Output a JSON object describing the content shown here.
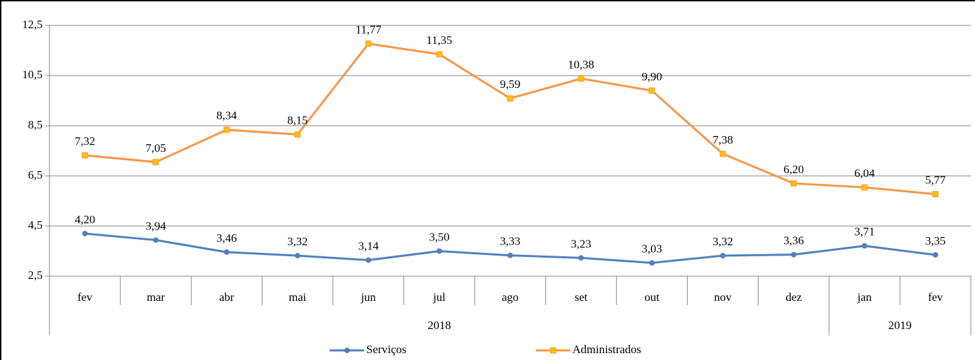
{
  "chart_data": {
    "type": "line",
    "groups": [
      {
        "name": "2018",
        "categories": [
          "fev",
          "mar",
          "abr",
          "mai",
          "jun",
          "jul",
          "ago",
          "set",
          "out",
          "nov",
          "dez"
        ]
      },
      {
        "name": "2019",
        "categories": [
          "jan",
          "fev"
        ]
      }
    ],
    "series": [
      {
        "name": "Serviços",
        "color": "#4f81bd",
        "marker": "circle",
        "values": [
          4.2,
          3.94,
          3.46,
          3.32,
          3.14,
          3.5,
          3.33,
          3.23,
          3.03,
          3.32,
          3.36,
          3.71,
          3.35
        ],
        "value_labels": [
          "4,20",
          "3,94",
          "3,46",
          "3,32",
          "3,14",
          "3,50",
          "3,33",
          "3,23",
          "3,03",
          "3,32",
          "3,36",
          "3,71",
          "3,35"
        ]
      },
      {
        "name": "Administrados",
        "color": "#f79646",
        "marker": "square",
        "values": [
          7.32,
          7.05,
          8.34,
          8.15,
          11.77,
          11.35,
          9.59,
          10.38,
          9.9,
          7.38,
          6.2,
          6.04,
          5.77
        ],
        "value_labels": [
          "7,32",
          "7,05",
          "8,34",
          "8,15",
          "11,77",
          "11,35",
          "9,59",
          "10,38",
          "9,90",
          "7,38",
          "6,20",
          "6,04",
          "5,77"
        ]
      }
    ],
    "ylim": [
      2.5,
      12.5
    ],
    "yticks": [
      {
        "value": 2.5,
        "label": "2,5"
      },
      {
        "value": 4.5,
        "label": "4,5"
      },
      {
        "value": 6.5,
        "label": "6,5"
      },
      {
        "value": 8.5,
        "label": "8,5"
      },
      {
        "value": 10.5,
        "label": "10,5"
      },
      {
        "value": 12.5,
        "label": "12,5"
      }
    ],
    "grid": true,
    "legend": "bottom"
  }
}
